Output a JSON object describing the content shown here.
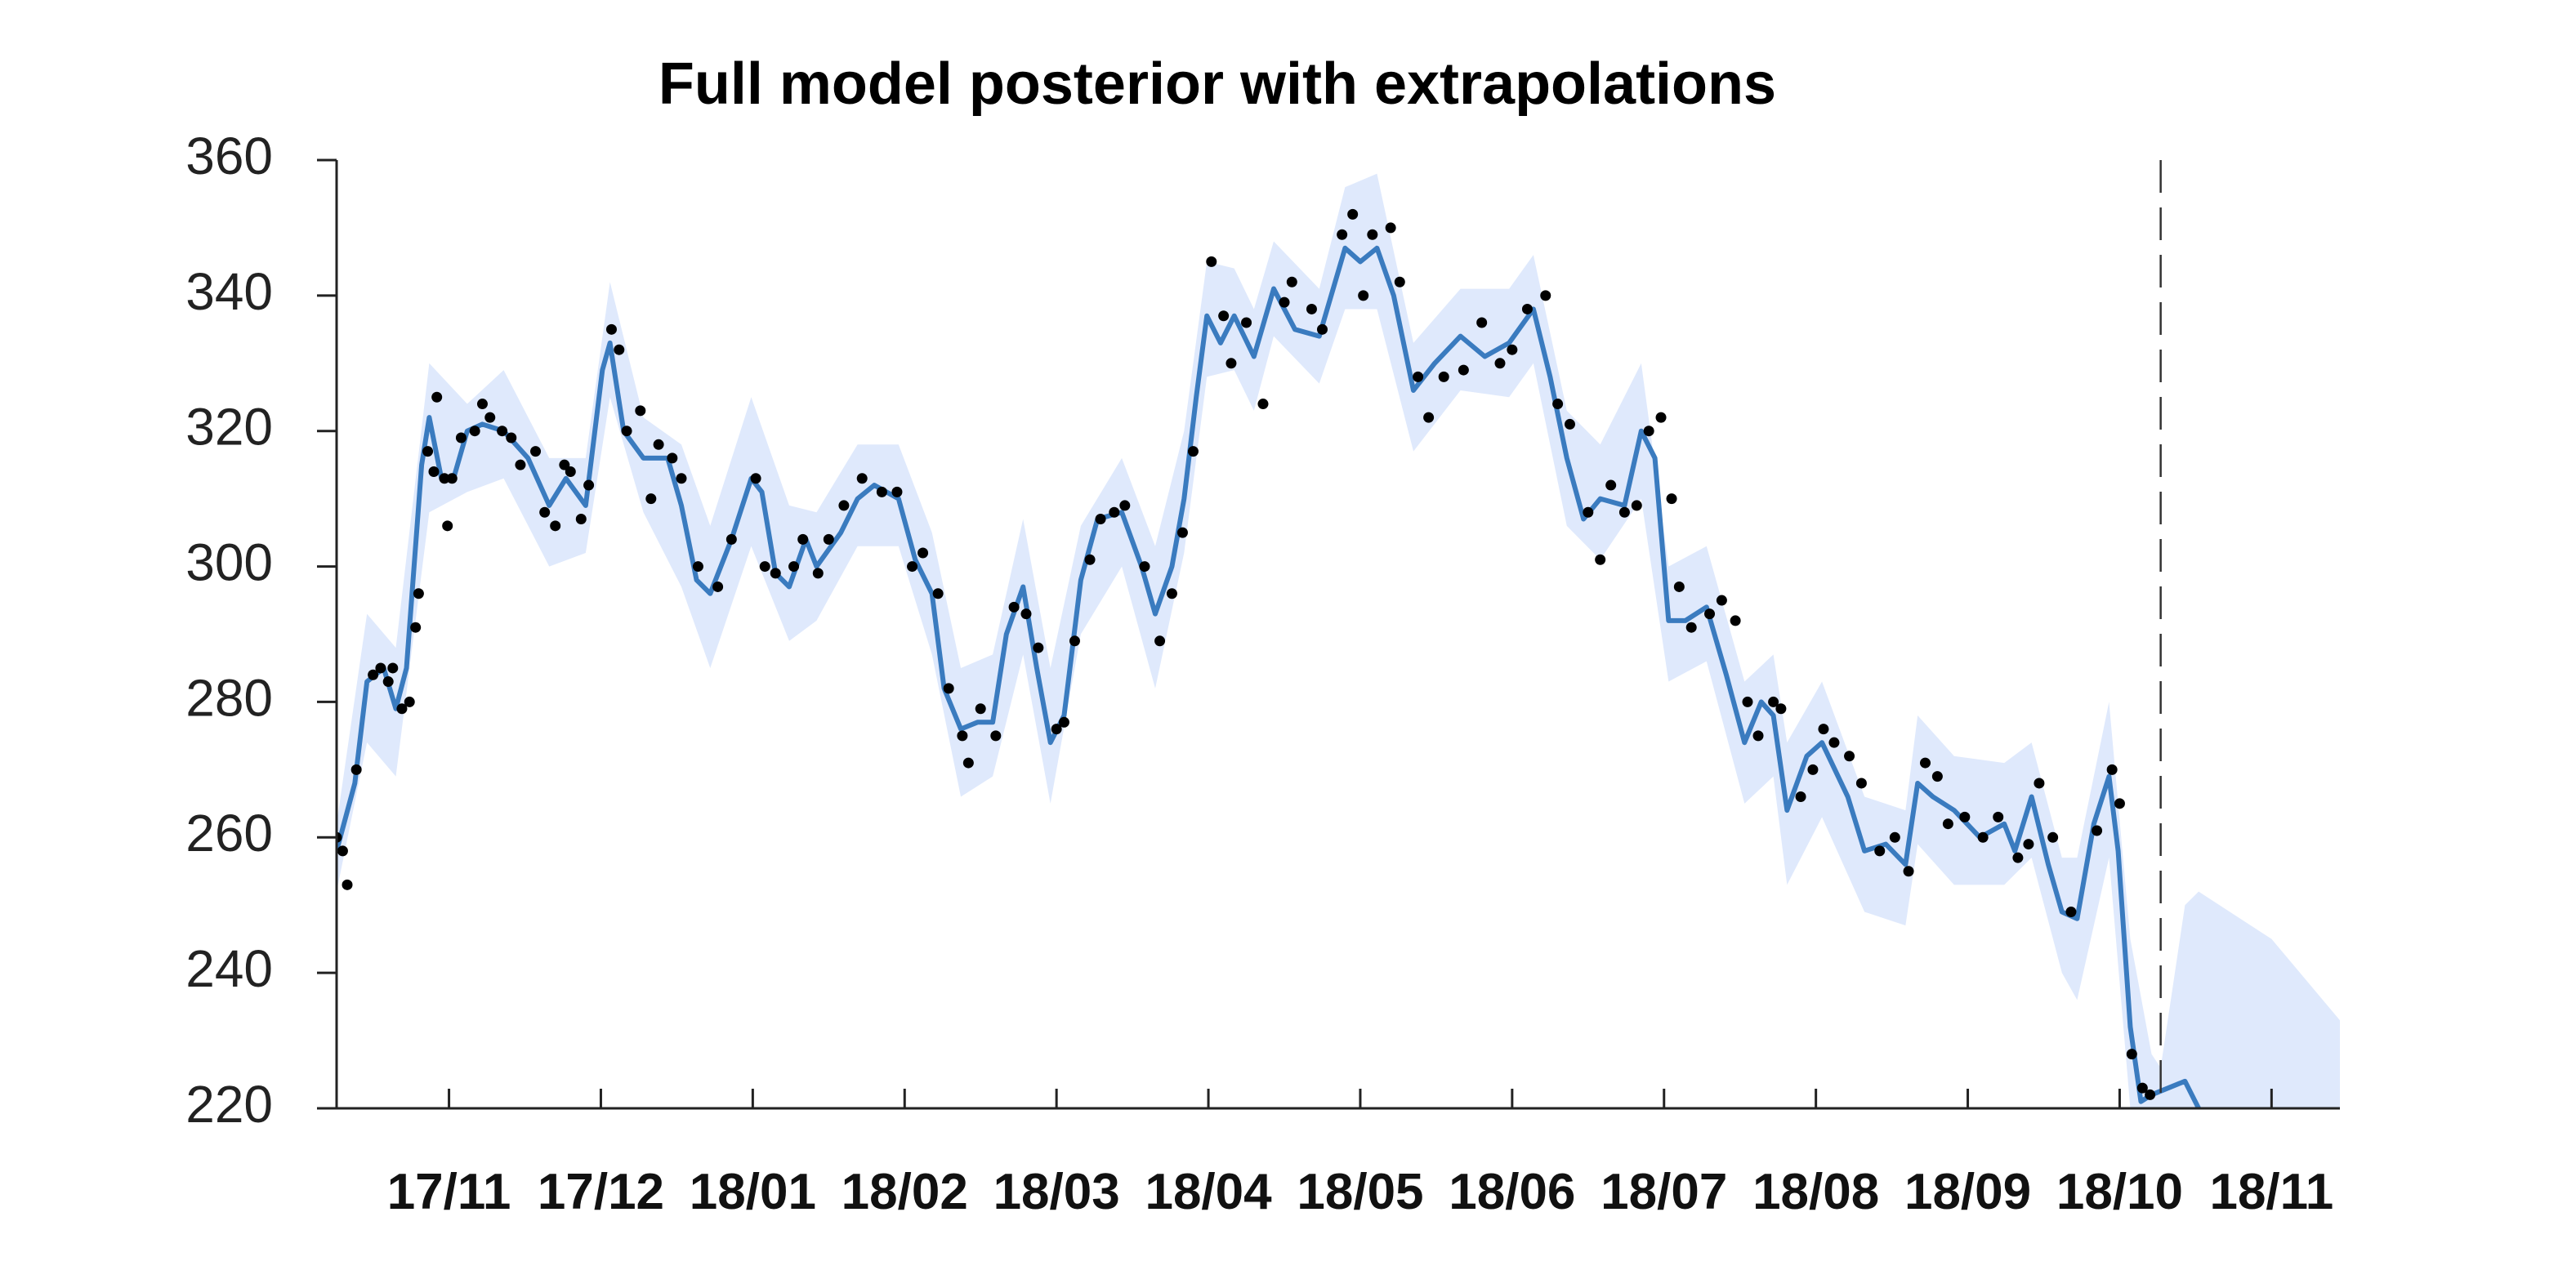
{
  "chart_data": {
    "type": "line",
    "title": "Full model posterior with extrapolations",
    "xlim": [
      10.26,
      23.45
    ],
    "xticks": [
      {
        "value": 11,
        "label": "17/11"
      },
      {
        "value": 12,
        "label": "17/12"
      },
      {
        "value": 13,
        "label": "18/01"
      },
      {
        "value": 14,
        "label": "18/02"
      },
      {
        "value": 15,
        "label": "18/03"
      },
      {
        "value": 16,
        "label": "18/04"
      },
      {
        "value": 17,
        "label": "18/05"
      },
      {
        "value": 18,
        "label": "18/06"
      },
      {
        "value": 19,
        "label": "18/07"
      },
      {
        "value": 20,
        "label": "18/08"
      },
      {
        "value": 21,
        "label": "18/09"
      },
      {
        "value": 22,
        "label": "18/10"
      },
      {
        "value": 23,
        "label": "18/11"
      }
    ],
    "ylim": [
      220,
      360
    ],
    "yticks": [
      220,
      240,
      260,
      280,
      300,
      320,
      340,
      360
    ],
    "divider_x": 22.27,
    "band": {
      "color": "#dfe9fc",
      "x": [
        10.26,
        10.46,
        10.65,
        10.87,
        11.12,
        11.36,
        11.66,
        11.9,
        12.06,
        12.28,
        12.53,
        12.72,
        12.99,
        13.24,
        13.42,
        13.69,
        13.96,
        14.18,
        14.37,
        14.58,
        14.78,
        14.96,
        15.16,
        15.43,
        15.65,
        15.84,
        15.99,
        16.17,
        16.3,
        16.43,
        16.73,
        16.9,
        17.11,
        17.35,
        17.66,
        17.98,
        18.14,
        18.36,
        18.58,
        18.85,
        19.03,
        19.28,
        19.53,
        19.72,
        19.81,
        20.04,
        20.32,
        20.59,
        20.67,
        20.91,
        21.24,
        21.42,
        21.62,
        21.72,
        21.93,
        22.07,
        22.21,
        22.27,
        22.43,
        22.52,
        23.0,
        23.45
      ],
      "lower": [
        252,
        274,
        269,
        308,
        311,
        313,
        300,
        302,
        325,
        308,
        297,
        285,
        303,
        289,
        292,
        303,
        303,
        287,
        266,
        269,
        287,
        265,
        290,
        300,
        282,
        302,
        328,
        329,
        323,
        334,
        327,
        338,
        338,
        317,
        326,
        325,
        330,
        306,
        301,
        310,
        283,
        286,
        265,
        269,
        253,
        263,
        249,
        247,
        259,
        253,
        253,
        257,
        240,
        236,
        257,
        220,
        220,
        220,
        220,
        220,
        220,
        220
      ],
      "upper": [
        262,
        293,
        288,
        330,
        324,
        329,
        316,
        316,
        342,
        322,
        318,
        306,
        325,
        309,
        308,
        318,
        318,
        305,
        285,
        287,
        307,
        285,
        306,
        316,
        303,
        320,
        345,
        344,
        338,
        348,
        341,
        356,
        358,
        333,
        341,
        341,
        346,
        323,
        318,
        330,
        300,
        303,
        283,
        287,
        274,
        283,
        266,
        264,
        278,
        272,
        271,
        274,
        257,
        257,
        280,
        245,
        228,
        226,
        250,
        252,
        245,
        233
      ]
    },
    "line": {
      "color": "#3a7bbf",
      "x": [
        10.26,
        10.38,
        10.46,
        10.57,
        10.65,
        10.72,
        10.82,
        10.87,
        10.95,
        11.03,
        11.12,
        11.22,
        11.36,
        11.52,
        11.66,
        11.77,
        11.9,
        12.01,
        12.06,
        12.15,
        12.28,
        12.44,
        12.53,
        12.63,
        12.72,
        12.86,
        12.99,
        13.06,
        13.15,
        13.24,
        13.35,
        13.42,
        13.58,
        13.69,
        13.8,
        13.96,
        14.07,
        14.18,
        14.26,
        14.37,
        14.48,
        14.58,
        14.67,
        14.78,
        14.87,
        14.96,
        15.05,
        15.16,
        15.27,
        15.43,
        15.56,
        15.65,
        15.76,
        15.84,
        15.92,
        15.99,
        16.08,
        16.17,
        16.3,
        16.43,
        16.57,
        16.73,
        16.9,
        17.0,
        17.11,
        17.22,
        17.35,
        17.49,
        17.66,
        17.82,
        17.98,
        18.14,
        18.25,
        18.36,
        18.47,
        18.58,
        18.74,
        18.85,
        18.94,
        19.03,
        19.14,
        19.28,
        19.41,
        19.53,
        19.64,
        19.72,
        19.81,
        19.94,
        20.04,
        20.21,
        20.32,
        20.46,
        20.59,
        20.67,
        20.77,
        20.91,
        21.08,
        21.24,
        21.31,
        21.42,
        21.53,
        21.62,
        21.72,
        21.83,
        21.93,
        21.99,
        22.07,
        22.14,
        22.21,
        22.43,
        22.52
      ],
      "values": [
        258,
        268,
        283,
        285,
        279,
        285,
        315,
        322,
        313,
        313,
        320,
        321,
        320,
        316,
        309,
        313,
        309,
        329,
        333,
        320,
        316,
        316,
        309,
        298,
        296,
        304,
        313,
        311,
        299,
        297,
        304,
        300,
        305,
        310,
        312,
        310,
        301,
        296,
        282,
        276,
        277,
        277,
        290,
        297,
        285,
        274,
        278,
        298,
        307,
        308,
        300,
        293,
        300,
        310,
        325,
        337,
        333,
        337,
        331,
        341,
        335,
        334,
        347,
        345,
        347,
        340,
        326,
        330,
        334,
        331,
        333,
        338,
        328,
        316,
        307,
        310,
        309,
        320,
        316,
        292,
        292,
        294,
        284,
        274,
        280,
        278,
        264,
        272,
        274,
        266,
        258,
        259,
        256,
        268,
        266,
        264,
        260,
        262,
        258,
        266,
        256,
        249,
        248,
        262,
        269,
        258,
        232,
        221,
        222,
        224,
        220
      ]
    },
    "points": {
      "color": "#000000",
      "x": [
        10.26,
        10.3,
        10.33,
        10.39,
        10.5,
        10.55,
        10.6,
        10.63,
        10.69,
        10.74,
        10.78,
        10.8,
        10.86,
        10.9,
        10.92,
        10.97,
        10.99,
        11.02,
        11.08,
        11.17,
        11.22,
        11.27,
        11.35,
        11.41,
        11.47,
        11.57,
        11.63,
        11.7,
        11.76,
        11.8,
        11.87,
        11.92,
        12.07,
        12.12,
        12.17,
        12.26,
        12.33,
        12.38,
        12.47,
        12.53,
        12.64,
        12.77,
        12.86,
        13.02,
        13.08,
        13.15,
        13.27,
        13.33,
        13.43,
        13.5,
        13.6,
        13.72,
        13.85,
        13.95,
        14.05,
        14.12,
        14.22,
        14.29,
        14.38,
        14.42,
        14.5,
        14.6,
        14.72,
        14.8,
        14.88,
        15.0,
        15.05,
        15.12,
        15.22,
        15.29,
        15.38,
        15.45,
        15.58,
        15.68,
        15.76,
        15.83,
        15.9,
        16.02,
        16.1,
        16.15,
        16.25,
        16.36,
        16.5,
        16.55,
        16.68,
        16.75,
        16.88,
        16.95,
        17.02,
        17.08,
        17.2,
        17.26,
        17.38,
        17.45,
        17.55,
        17.68,
        17.8,
        17.92,
        18.0,
        18.1,
        18.22,
        18.3,
        18.38,
        18.5,
        18.58,
        18.65,
        18.74,
        18.82,
        18.9,
        18.98,
        19.05,
        19.1,
        19.18,
        19.3,
        19.38,
        19.47,
        19.55,
        19.62,
        19.72,
        19.77,
        19.9,
        19.98,
        20.05,
        20.12,
        20.22,
        20.3,
        20.42,
        20.52,
        20.61,
        20.72,
        20.8,
        20.87,
        20.98,
        21.1,
        21.2,
        21.33,
        21.4,
        21.47,
        21.56,
        21.68,
        21.85,
        21.95,
        22.0,
        22.08,
        22.15,
        22.2
      ],
      "values": [
        260,
        258,
        253,
        270,
        284,
        285,
        283,
        285,
        279,
        280,
        291,
        296,
        317,
        314,
        325,
        313,
        306,
        313,
        319,
        320,
        324,
        322,
        320,
        319,
        315,
        317,
        308,
        306,
        315,
        314,
        307,
        312,
        335,
        332,
        320,
        323,
        310,
        318,
        316,
        313,
        300,
        297,
        304,
        313,
        300,
        299,
        300,
        304,
        299,
        304,
        309,
        313,
        311,
        311,
        300,
        302,
        296,
        282,
        275,
        271,
        279,
        275,
        294,
        293,
        288,
        276,
        277,
        289,
        301,
        307,
        308,
        309,
        300,
        289,
        296,
        305,
        317,
        345,
        337,
        330,
        336,
        324,
        339,
        342,
        338,
        335,
        349,
        352,
        340,
        349,
        350,
        342,
        328,
        322,
        328,
        329,
        336,
        330,
        332,
        338,
        340,
        324,
        321,
        308,
        301,
        312,
        308,
        309,
        320,
        322,
        310,
        297,
        291,
        293,
        295,
        292,
        280,
        275,
        280,
        279,
        266,
        270,
        276,
        274,
        272,
        268,
        258,
        260,
        255,
        271,
        269,
        262,
        263,
        260,
        263,
        257,
        259,
        268,
        260,
        249,
        261,
        270,
        265,
        228,
        223,
        222
      ]
    }
  }
}
